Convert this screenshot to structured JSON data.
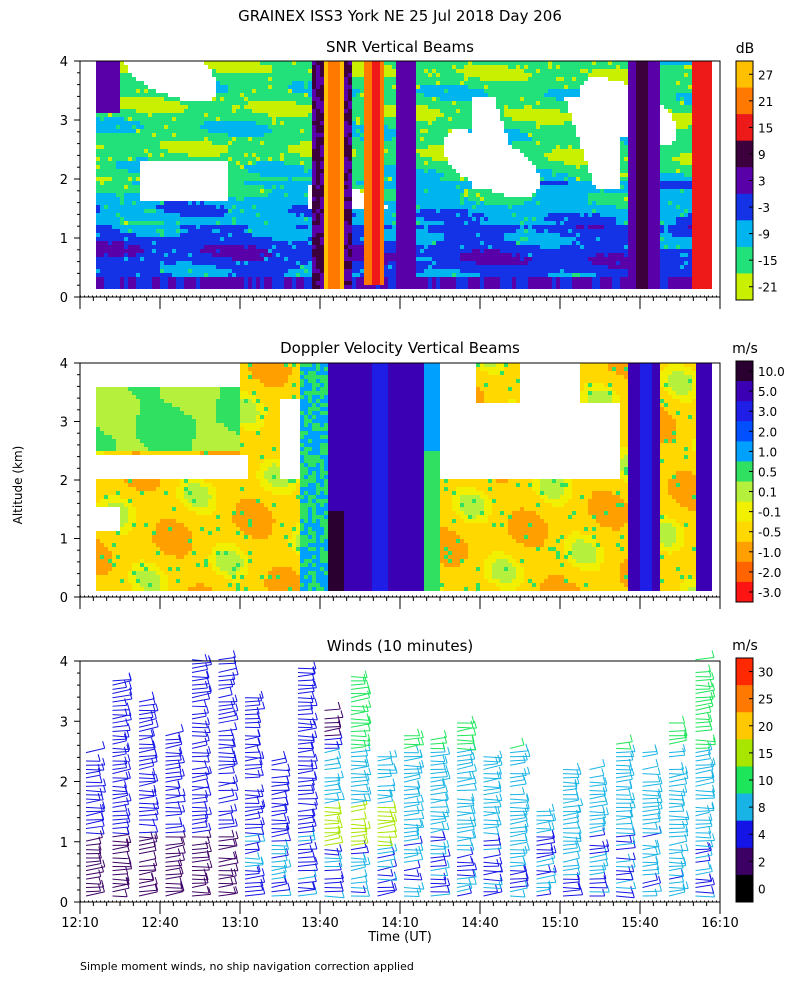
{
  "page": {
    "title": "GRAINEX ISS3 York NE  25 Jul 2018 Day 206",
    "footnote": "Simple moment winds, no ship navigation correction applied",
    "shared_ylabel": "Altitude (km)"
  },
  "chart_data": [
    {
      "type": "heatmap",
      "title": "SNR Vertical Beams",
      "unit": "dB",
      "ylim": [
        0,
        4
      ],
      "yticks": [
        "0",
        "1",
        "2",
        "3",
        "4"
      ],
      "colorbar": {
        "labels": [
          "27",
          "21",
          "15",
          "9",
          "3",
          "-3",
          "-9",
          "-15",
          "-21"
        ],
        "colors": [
          "#ffc000",
          "#ff7800",
          "#ee1a1a",
          "#3c003c",
          "#5a00a8",
          "#1432e6",
          "#00b4f0",
          "#22e07a",
          "#c8f000"
        ]
      }
    },
    {
      "type": "heatmap",
      "title": "Doppler Velocity Vertical Beams",
      "unit": "m/s",
      "ylim": [
        0,
        4
      ],
      "yticks": [
        "0",
        "1",
        "2",
        "3",
        "4"
      ],
      "colorbar": {
        "labels": [
          "10.0",
          "5.0",
          "3.0",
          "2.0",
          "1.0",
          "0.5",
          "0.1",
          "-0.1",
          "-0.5",
          "-1.0",
          "-2.0",
          "-3.0"
        ],
        "colors": [
          "#2a0030",
          "#3c00b4",
          "#1e1ee6",
          "#0050ff",
          "#00a0ff",
          "#30e060",
          "#b4f03c",
          "#f0f000",
          "#ffd800",
          "#ffa000",
          "#ff6400",
          "#ff1414"
        ]
      }
    },
    {
      "type": "wind-barbs",
      "title": "Winds (10 minutes)",
      "unit": "m/s",
      "ylim": [
        0,
        4
      ],
      "yticks": [
        "0",
        "1",
        "2",
        "3",
        "4"
      ],
      "xlabel": "Time (UT)",
      "xticks": [
        "12:10",
        "12:40",
        "13:10",
        "13:40",
        "14:10",
        "14:40",
        "15:10",
        "15:40",
        "16:10"
      ],
      "colorbar": {
        "labels": [
          "30",
          "25",
          "20",
          "15",
          "10",
          "8",
          "4",
          "2",
          "0"
        ],
        "colors": [
          "#ff2800",
          "#ff7800",
          "#ffc800",
          "#a8e600",
          "#1ee65a",
          "#18b4e6",
          "#1414e6",
          "#3c0064",
          "#000000"
        ]
      }
    }
  ]
}
